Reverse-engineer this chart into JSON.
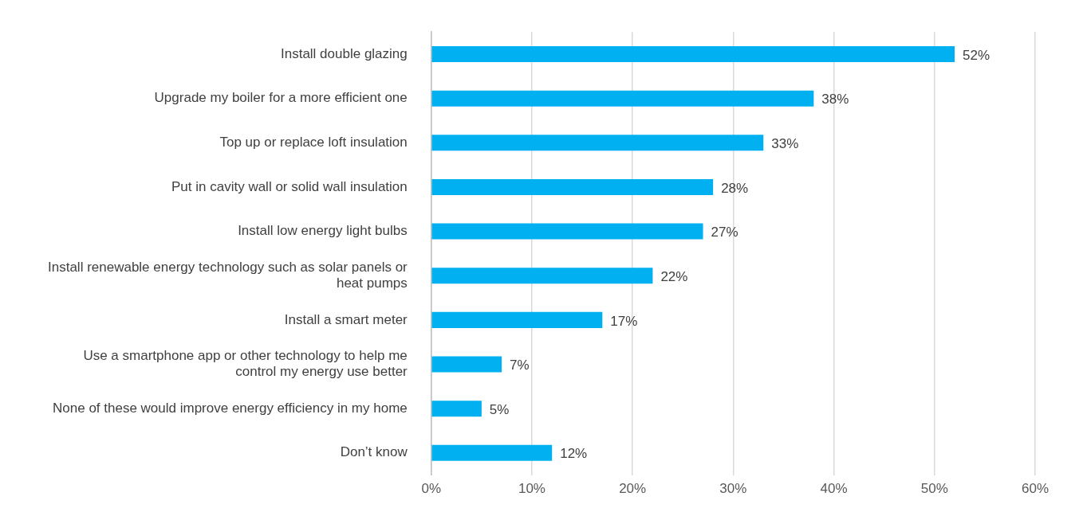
{
  "chart_data": {
    "type": "bar",
    "orientation": "horizontal",
    "categories": [
      "Install double glazing",
      "Upgrade my boiler for a more efficient one",
      "Top up or replace loft insulation",
      "Put in cavity wall or solid wall insulation",
      "Install low energy light bulbs",
      "Install renewable energy technology such as solar panels or heat pumps",
      "Install a smart meter",
      "Use a smartphone app or other technology to help me control my energy use better",
      "None of these would improve energy efficiency in my home",
      "Don’t know"
    ],
    "values": [
      52,
      38,
      33,
      28,
      27,
      22,
      17,
      7,
      5,
      12
    ],
    "value_labels": [
      "52%",
      "38%",
      "33%",
      "28%",
      "27%",
      "22%",
      "17%",
      "7%",
      "5%",
      "12%"
    ],
    "color": "#00b0f0",
    "xlim": [
      0,
      60
    ],
    "xticks": [
      {
        "value": 0,
        "label": "0%"
      },
      {
        "value": 10,
        "label": "10%"
      },
      {
        "value": 20,
        "label": "20%"
      },
      {
        "value": 30,
        "label": "30%"
      },
      {
        "value": 40,
        "label": "40%"
      },
      {
        "value": 50,
        "label": "50%"
      },
      {
        "value": 60,
        "label": "60%"
      }
    ],
    "grid": "x",
    "legend": false
  }
}
